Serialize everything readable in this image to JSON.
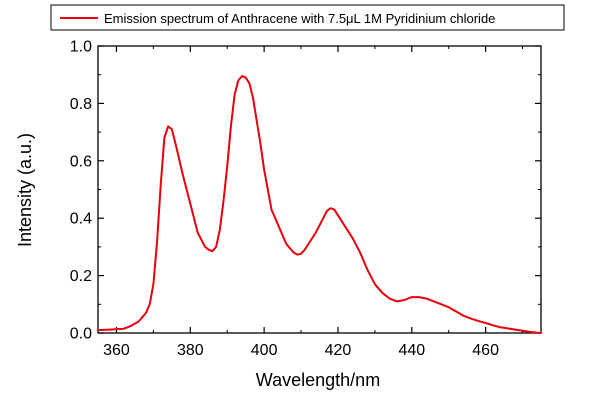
{
  "colors": {
    "series": "#e8000b",
    "axis": "#000000",
    "background": "#ffffff"
  },
  "chart_data": {
    "type": "line",
    "title": "",
    "xlabel": "Wavelength/nm",
    "ylabel": "Intensity (a.u.)",
    "xlim": [
      355,
      475
    ],
    "ylim": [
      0.0,
      1.0
    ],
    "xticks": [
      360,
      380,
      400,
      420,
      440,
      460
    ],
    "xtick_labels": [
      "360",
      "380",
      "400",
      "420",
      "440",
      "460"
    ],
    "yticks": [
      0.0,
      0.2,
      0.4,
      0.6,
      0.8,
      1.0
    ],
    "ytick_labels": [
      "0.0",
      "0.2",
      "0.4",
      "0.6",
      "0.8",
      "1.0"
    ],
    "grid": false,
    "legend_position": "top",
    "series": [
      {
        "name": "Emission spectrum of Anthracene with 7.5μL 1M Pyridinium chloride",
        "color": "#e8000b",
        "x": [
          355,
          358,
          362,
          364,
          366,
          367,
          368,
          369,
          370,
          371,
          372,
          373,
          374,
          375,
          376,
          378,
          380,
          382,
          384,
          385,
          386,
          387,
          388,
          389,
          390,
          391,
          392,
          393,
          394,
          395,
          396,
          397,
          398,
          399,
          400,
          401,
          402,
          404,
          406,
          408,
          409,
          410,
          411,
          412,
          414,
          416,
          417,
          418,
          419,
          420,
          422,
          424,
          426,
          428,
          430,
          432,
          434,
          436,
          438,
          440,
          442,
          444,
          446,
          448,
          450,
          452,
          454,
          456,
          458,
          460,
          462,
          464,
          466,
          468,
          470,
          472,
          474,
          475
        ],
        "y": [
          0.01,
          0.012,
          0.015,
          0.025,
          0.04,
          0.055,
          0.07,
          0.1,
          0.17,
          0.32,
          0.52,
          0.68,
          0.72,
          0.71,
          0.66,
          0.55,
          0.45,
          0.35,
          0.3,
          0.29,
          0.285,
          0.3,
          0.36,
          0.46,
          0.58,
          0.72,
          0.83,
          0.88,
          0.895,
          0.89,
          0.87,
          0.82,
          0.74,
          0.66,
          0.57,
          0.5,
          0.43,
          0.37,
          0.31,
          0.28,
          0.273,
          0.276,
          0.29,
          0.31,
          0.35,
          0.4,
          0.425,
          0.435,
          0.43,
          0.41,
          0.37,
          0.33,
          0.28,
          0.22,
          0.17,
          0.14,
          0.12,
          0.11,
          0.115,
          0.125,
          0.125,
          0.12,
          0.11,
          0.1,
          0.09,
          0.075,
          0.06,
          0.05,
          0.042,
          0.035,
          0.027,
          0.02,
          0.016,
          0.012,
          0.008,
          0.004,
          0.001,
          0.0
        ]
      }
    ]
  }
}
